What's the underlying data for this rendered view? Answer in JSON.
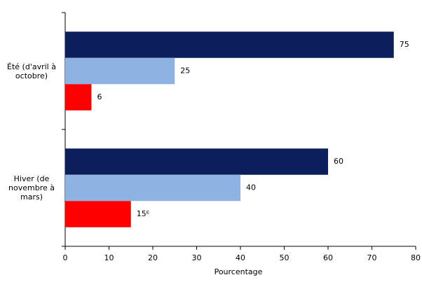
{
  "chart_data": {
    "type": "hbar",
    "categories": [
      "Été (d'avril à octobre)",
      "Hiver (de novembre à mars)"
    ],
    "series": [
      {
        "color": "#0c1e5b",
        "values": [
          75,
          60
        ]
      },
      {
        "color": "#8eb3e2",
        "values": [
          25,
          40
        ]
      },
      {
        "color": "#ff0000",
        "values": [
          6,
          15
        ],
        "value_labels": [
          "6",
          "15ᴱ"
        ]
      }
    ],
    "x_label": "Pourcentage",
    "xlim": [
      0,
      80
    ],
    "xticks": [
      0,
      10,
      20,
      30,
      40,
      50,
      60,
      70,
      80
    ]
  }
}
